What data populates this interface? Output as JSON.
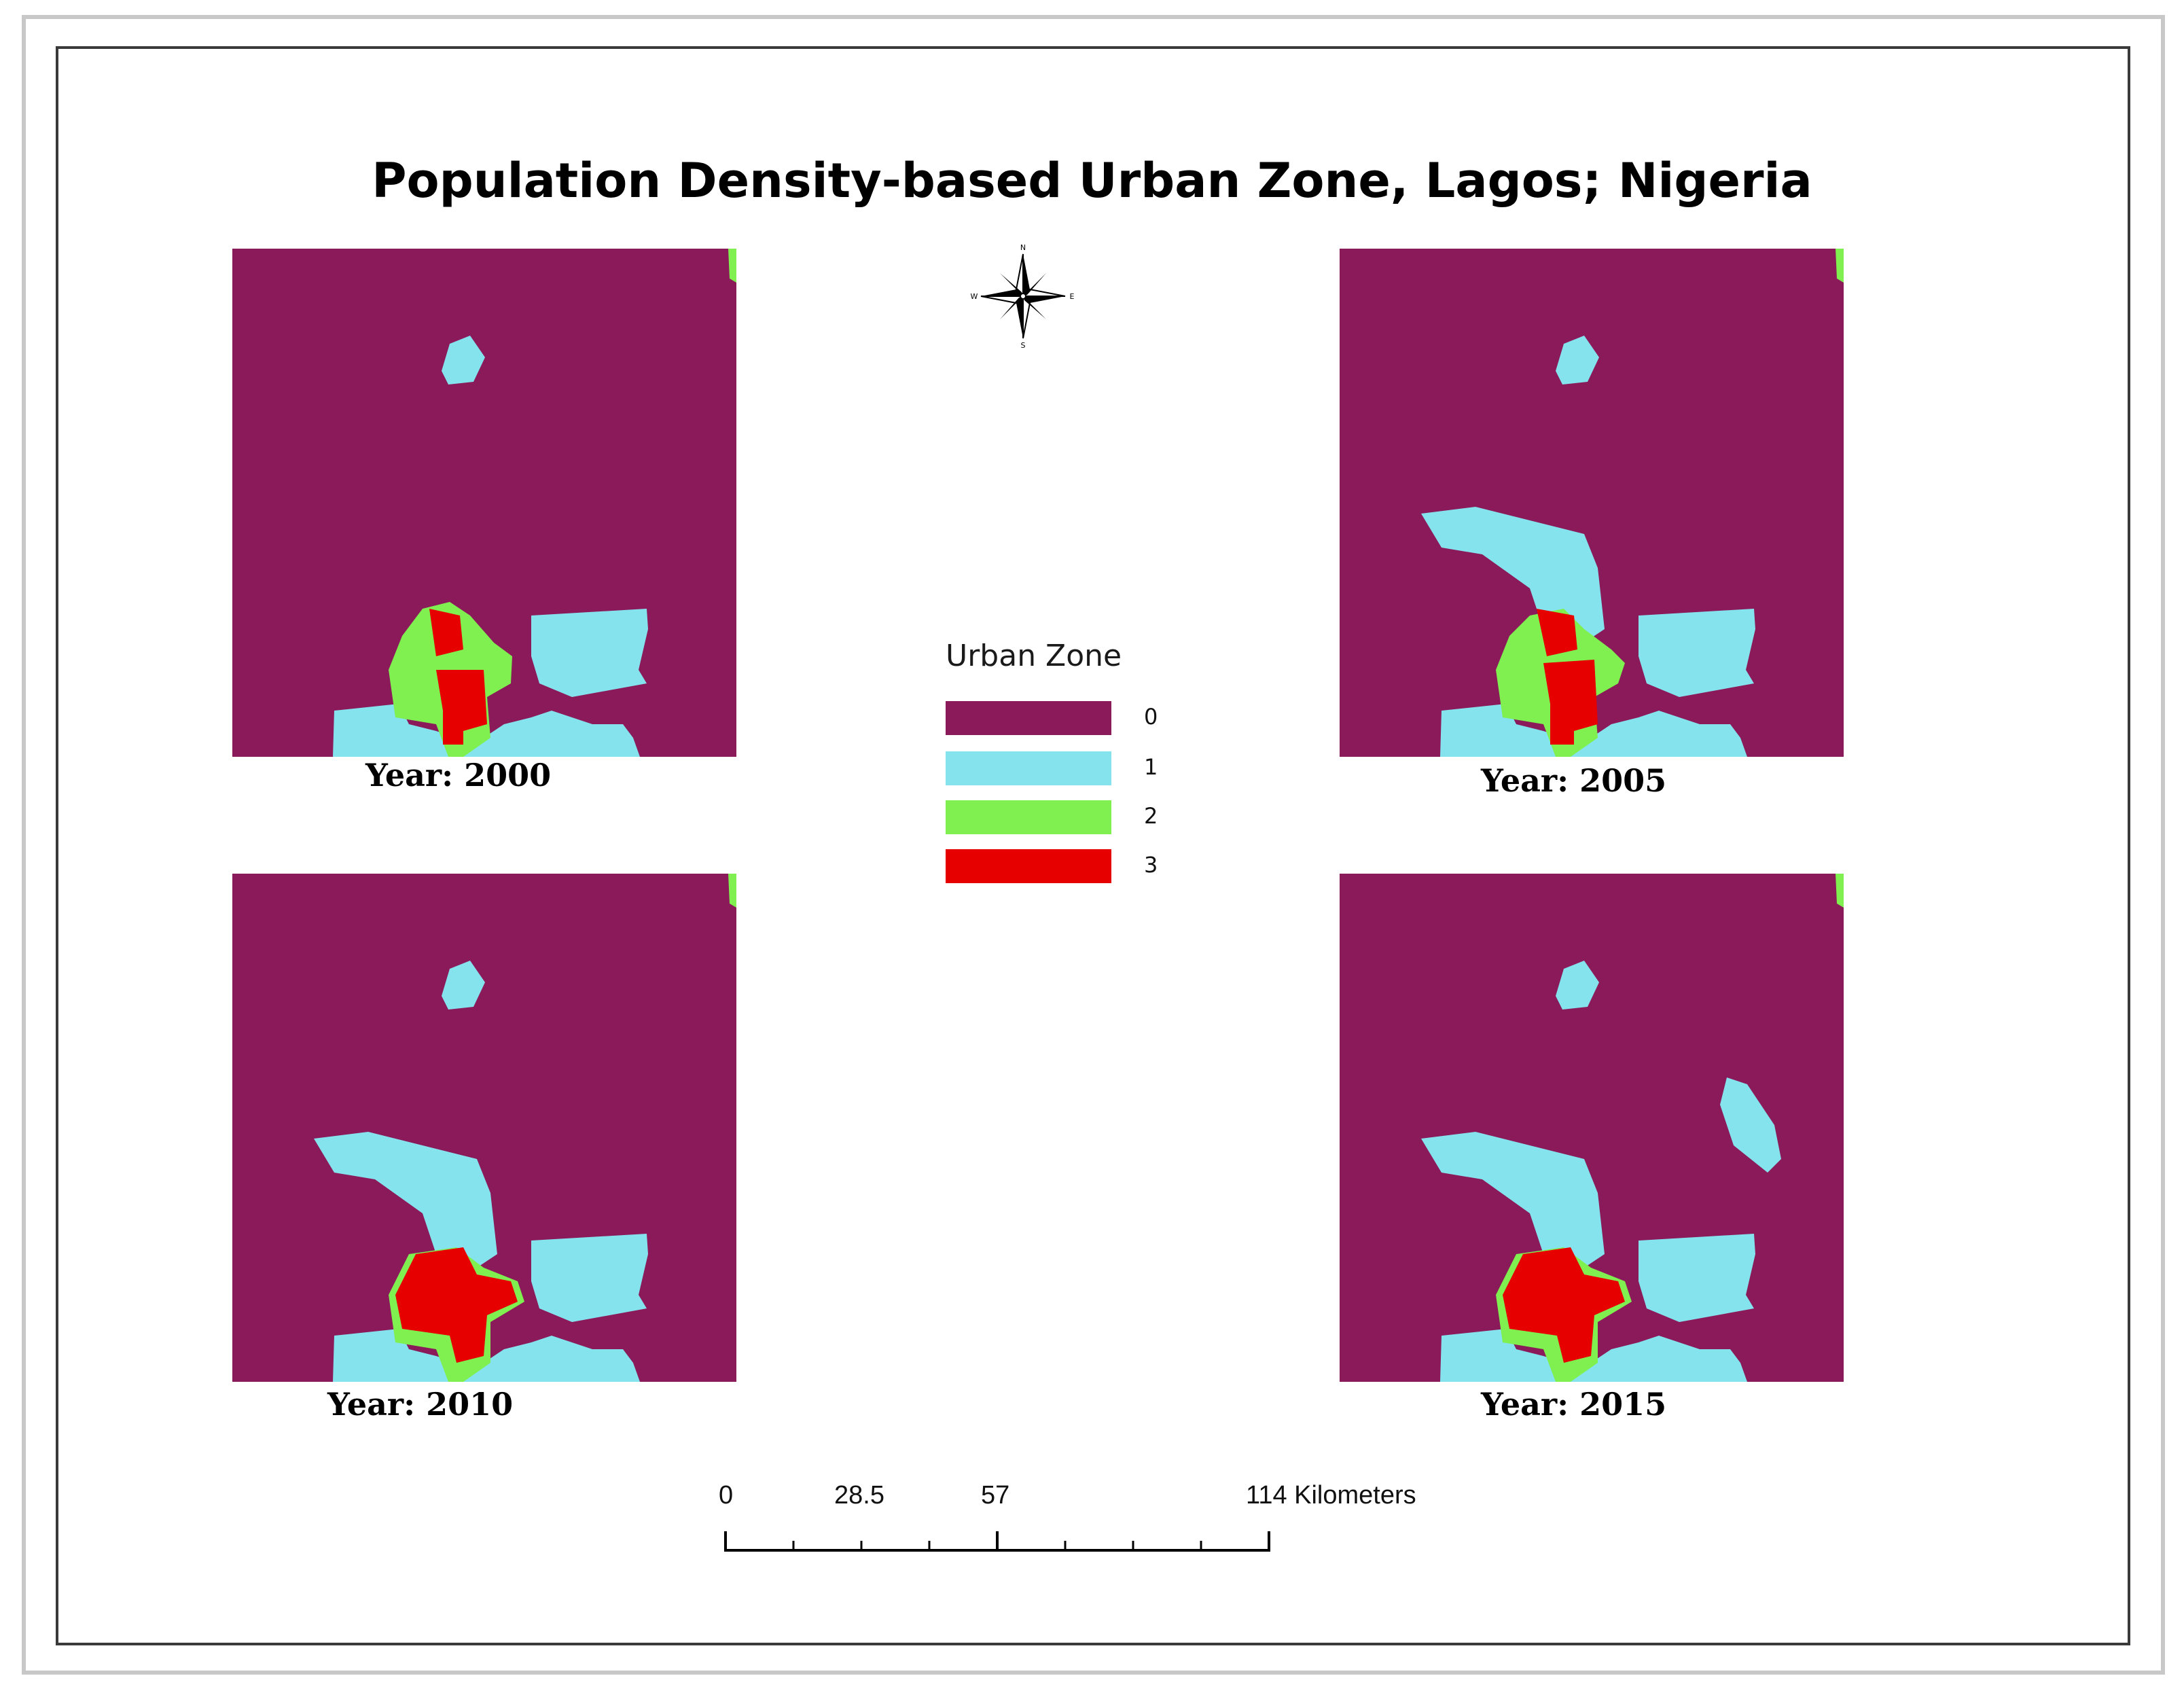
{
  "title": "Population Density-based Urban Zone, Lagos; Nigeria",
  "compass": {
    "north": "N",
    "south": "S",
    "east": "E",
    "west": "W"
  },
  "maps": [
    {
      "year_label": "Year: 2000",
      "year": 2000
    },
    {
      "year_label": "Year: 2005",
      "year": 2005
    },
    {
      "year_label": "Year: 2010",
      "year": 2010
    },
    {
      "year_label": "Year: 2015",
      "year": 2015
    }
  ],
  "legend": {
    "title": "Urban Zone",
    "items": [
      {
        "label": "0",
        "color": "#8b1a5a"
      },
      {
        "label": "1",
        "color": "#85e3ee"
      },
      {
        "label": "2",
        "color": "#7ff04f"
      },
      {
        "label": "3",
        "color": "#e60000"
      }
    ]
  },
  "scale_bar": {
    "labels": [
      "0",
      "28.5",
      "57",
      "114 Kilometers"
    ],
    "unit": "Kilometers",
    "max": 114
  }
}
